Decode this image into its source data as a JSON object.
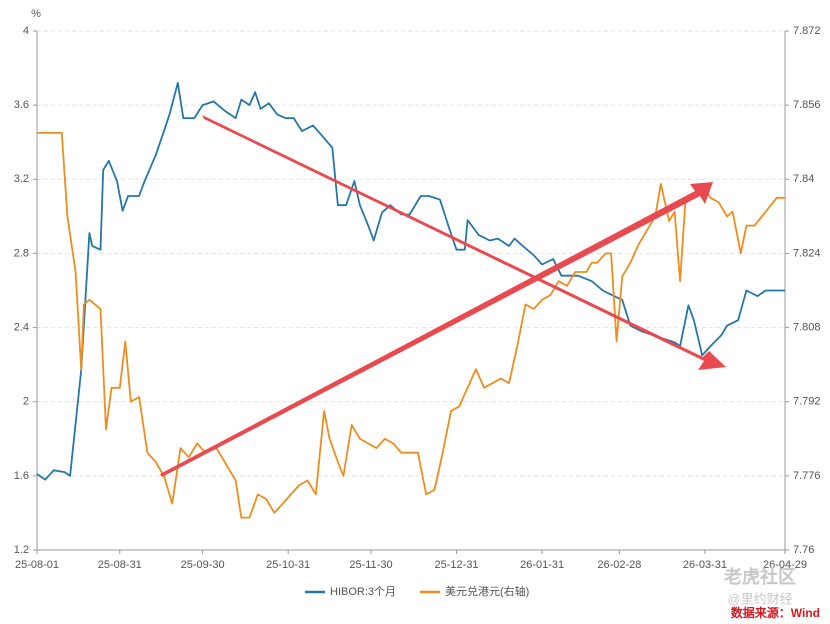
{
  "chart_data": {
    "type": "line",
    "y_unit": "%",
    "xlim": [
      "25-08-01",
      "26-04-29"
    ],
    "xticks": [
      "25-08-01",
      "25-08-31",
      "25-09-30",
      "25-10-31",
      "25-11-30",
      "25-12-31",
      "26-01-31",
      "26-02-28",
      "26-03-31",
      "26-04-29"
    ],
    "ylim": [
      1.2,
      4
    ],
    "yticks": [
      1.2,
      1.6,
      2,
      2.4,
      2.8,
      3.2,
      3.6,
      4
    ],
    "y2lim": [
      7.76,
      7.872
    ],
    "y2ticks": [
      7.76,
      7.776,
      7.792,
      7.808,
      7.824,
      7.84,
      7.856,
      7.872
    ],
    "grid": true,
    "legend": "bottom",
    "series": [
      {
        "name": "HIBOR:3个月",
        "color": "#2577a6",
        "x": [
          "25-08-01",
          "25-08-04",
          "25-08-07",
          "25-08-11",
          "25-08-13",
          "25-08-17",
          "25-08-20",
          "25-08-21",
          "25-08-24",
          "25-08-25",
          "25-08-27",
          "25-08-30",
          "25-09-01",
          "25-09-03",
          "25-09-07",
          "25-09-09",
          "25-09-13",
          "25-09-16",
          "25-09-18",
          "25-09-21",
          "25-09-23",
          "25-09-27",
          "25-09-30",
          "25-10-04",
          "25-10-08",
          "25-10-12",
          "25-10-14",
          "25-10-17",
          "25-10-19",
          "25-10-21",
          "25-10-24",
          "25-10-27",
          "25-10-30",
          "25-11-02",
          "25-11-05",
          "25-11-09",
          "25-11-12",
          "25-11-16",
          "25-11-18",
          "25-11-21",
          "25-11-24",
          "25-11-26",
          "25-11-29",
          "25-12-01",
          "25-12-04",
          "25-12-07",
          "25-12-11",
          "25-12-14",
          "25-12-18",
          "25-12-21",
          "25-12-25",
          "25-12-28",
          "25-12-31",
          "26-01-03",
          "26-01-04",
          "26-01-08",
          "26-01-12",
          "26-01-15",
          "26-01-19",
          "26-01-21",
          "26-01-24",
          "26-01-28",
          "26-01-31",
          "26-02-04",
          "26-02-07",
          "26-02-09",
          "26-02-13",
          "26-02-18",
          "26-02-22",
          "26-02-26",
          "26-03-01",
          "26-03-04",
          "26-03-08",
          "26-03-12",
          "26-03-16",
          "26-03-20",
          "26-03-22",
          "26-03-25",
          "26-03-27",
          "26-03-30",
          "26-04-02",
          "26-04-06",
          "26-04-08",
          "26-04-12",
          "26-04-15",
          "26-04-19",
          "26-04-22",
          "26-04-25",
          "26-04-29"
        ],
        "values": [
          1.61,
          1.58,
          1.63,
          1.62,
          1.6,
          2.17,
          2.91,
          2.84,
          2.82,
          3.25,
          3.3,
          3.19,
          3.03,
          3.11,
          3.11,
          3.19,
          3.33,
          3.46,
          3.55,
          3.72,
          3.53,
          3.53,
          3.6,
          3.62,
          3.57,
          3.53,
          3.63,
          3.6,
          3.67,
          3.58,
          3.61,
          3.55,
          3.53,
          3.53,
          3.46,
          3.49,
          3.44,
          3.37,
          3.06,
          3.06,
          3.19,
          3.06,
          2.95,
          2.87,
          3.02,
          3.06,
          3.01,
          3.01,
          3.11,
          3.11,
          3.09,
          2.95,
          2.82,
          2.82,
          2.98,
          2.9,
          2.87,
          2.88,
          2.84,
          2.88,
          2.84,
          2.79,
          2.74,
          2.77,
          2.68,
          2.68,
          2.68,
          2.65,
          2.6,
          2.57,
          2.55,
          2.41,
          2.38,
          2.36,
          2.34,
          2.32,
          2.3,
          2.52,
          2.44,
          2.25,
          2.3,
          2.36,
          2.41,
          2.44,
          2.6,
          2.57,
          2.6,
          2.6,
          2.6
        ]
      },
      {
        "name": "美元兑港元(右轴)",
        "color": "#ee8d1f",
        "axis": "y2",
        "x": [
          "25-08-01",
          "25-08-10",
          "25-08-12",
          "25-08-15",
          "25-08-17",
          "25-08-18",
          "25-08-20",
          "25-08-24",
          "25-08-26",
          "25-08-28",
          "25-08-31",
          "25-09-02",
          "25-09-04",
          "25-09-07",
          "25-09-10",
          "25-09-13",
          "25-09-16",
          "25-09-19",
          "25-09-22",
          "25-09-25",
          "25-09-28",
          "25-10-01",
          "25-10-05",
          "25-10-08",
          "25-10-12",
          "25-10-14",
          "25-10-17",
          "25-10-20",
          "25-10-23",
          "25-10-26",
          "25-10-29",
          "25-11-01",
          "25-11-04",
          "25-11-07",
          "25-11-10",
          "25-11-13",
          "25-11-15",
          "25-11-18",
          "25-11-20",
          "25-11-23",
          "25-11-26",
          "25-11-29",
          "25-12-02",
          "25-12-05",
          "25-12-08",
          "25-12-11",
          "25-12-14",
          "25-12-17",
          "25-12-20",
          "25-12-23",
          "25-12-26",
          "25-12-29",
          "26-01-01",
          "26-01-04",
          "26-01-07",
          "26-01-10",
          "26-01-13",
          "26-01-16",
          "26-01-19",
          "26-01-22",
          "26-01-25",
          "26-01-28",
          "26-01-31",
          "26-02-03",
          "26-02-06",
          "26-02-09",
          "26-02-12",
          "26-02-16",
          "26-02-18",
          "26-02-20",
          "26-02-23",
          "26-02-25",
          "26-02-27",
          "26-03-01",
          "26-03-04",
          "26-03-07",
          "26-03-10",
          "26-03-13",
          "26-03-15",
          "26-03-18",
          "26-03-20",
          "26-03-22",
          "26-03-24",
          "26-03-27",
          "26-03-30",
          "26-04-02",
          "26-04-05",
          "26-04-08",
          "26-04-10",
          "26-04-13",
          "26-04-15",
          "26-04-18",
          "26-04-22",
          "26-04-26",
          "26-04-29"
        ],
        "values": [
          7.85,
          7.85,
          7.832,
          7.82,
          7.799,
          7.813,
          7.814,
          7.812,
          7.786,
          7.795,
          7.795,
          7.805,
          7.792,
          7.793,
          7.781,
          7.779,
          7.776,
          7.77,
          7.782,
          7.78,
          7.783,
          7.781,
          7.782,
          7.779,
          7.775,
          7.767,
          7.767,
          7.772,
          7.771,
          7.768,
          7.77,
          7.772,
          7.774,
          7.775,
          7.772,
          7.79,
          7.784,
          7.779,
          7.776,
          7.787,
          7.784,
          7.783,
          7.782,
          7.784,
          7.783,
          7.781,
          7.781,
          7.781,
          7.772,
          7.773,
          7.781,
          7.79,
          7.791,
          7.795,
          7.799,
          7.795,
          7.796,
          7.797,
          7.796,
          7.804,
          7.813,
          7.812,
          7.814,
          7.815,
          7.818,
          7.817,
          7.82,
          7.82,
          7.822,
          7.822,
          7.824,
          7.824,
          7.805,
          7.819,
          7.822,
          7.826,
          7.829,
          7.832,
          7.839,
          7.831,
          7.833,
          7.818,
          7.836,
          7.836,
          7.839,
          7.836,
          7.835,
          7.832,
          7.833,
          7.824,
          7.83,
          7.83,
          7.833,
          7.836,
          7.836
        ]
      }
    ],
    "watermark": "老虎社区",
    "watermark_sub": "@里约财经",
    "source": "数据来源：Wind"
  }
}
